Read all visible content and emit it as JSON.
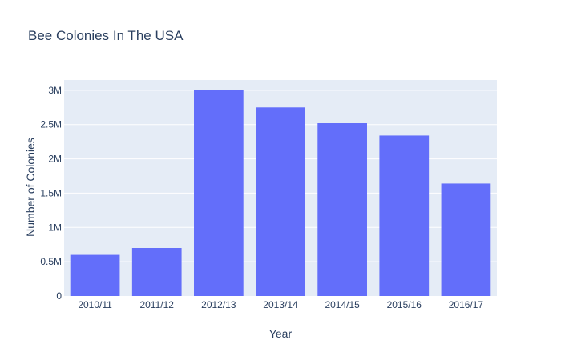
{
  "chart_data": {
    "type": "bar",
    "title": "Bee Colonies In The USA",
    "xlabel": "Year",
    "ylabel": "Number of Colonies",
    "categories": [
      "2010/11",
      "2011/12",
      "2012/13",
      "2013/14",
      "2014/15",
      "2015/16",
      "2016/17"
    ],
    "values": [
      600000,
      700000,
      3000000,
      2750000,
      2520000,
      2340000,
      1640000
    ],
    "ylim": [
      0,
      3150000
    ],
    "yticks": [
      0,
      500000,
      1000000,
      1500000,
      2000000,
      2500000,
      3000000
    ],
    "ytick_labels": [
      "0",
      "0.5M",
      "1M",
      "1.5M",
      "2M",
      "2.5M",
      "3M"
    ],
    "grid": true,
    "legend": "none",
    "colors": {
      "bar": "#636efa",
      "plot_bg": "#e5ecf6",
      "grid": "#ffffff",
      "text": "#2a3f5f"
    }
  }
}
